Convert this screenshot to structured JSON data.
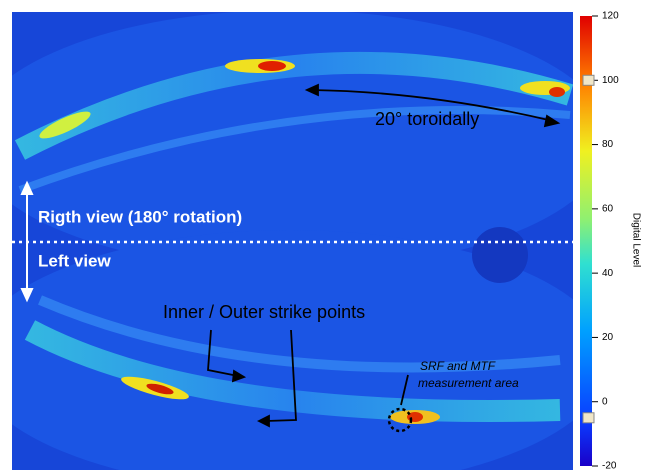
{
  "annotations": {
    "toroidal": "20° toroidally",
    "right_view": "Rigth view (180° rotation)",
    "left_view": "Left view",
    "strike_points": "Inner / Outer strike points",
    "measurement_area": [
      "SRF and MTF",
      "measurement area"
    ]
  },
  "colorbar": {
    "label": "Digital Level",
    "lim": [
      -20,
      120
    ],
    "ticks": [
      -20,
      0,
      20,
      40,
      60,
      80,
      100,
      120
    ],
    "range_handles": [
      100,
      -5
    ]
  }
}
